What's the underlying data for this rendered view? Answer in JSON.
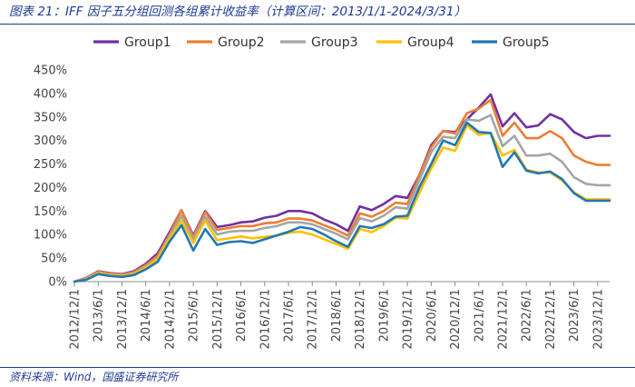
{
  "header": {
    "title": "图表 21：IFF 因子五分组回测各组累计收益率（计算区间：2013/1/1-2024/3/31）"
  },
  "footer": {
    "source": "资料来源：Wind，国盛证券研究所"
  },
  "chart_data": {
    "type": "line",
    "title": "",
    "xlabel": "",
    "ylabel": "",
    "ylim": [
      0,
      450
    ],
    "yticks": [
      "0%",
      "50%",
      "100%",
      "150%",
      "200%",
      "250%",
      "300%",
      "350%",
      "400%",
      "450%"
    ],
    "grid": false,
    "legend_position": "top",
    "xtick_labels": [
      "2012/12/1",
      "2013/6/1",
      "2013/12/1",
      "2014/6/1",
      "2014/12/1",
      "2015/6/1",
      "2015/12/1",
      "2016/6/1",
      "2016/12/1",
      "2017/6/1",
      "2017/12/1",
      "2018/6/1",
      "2018/12/1",
      "2019/6/1",
      "2019/12/1",
      "2020/6/1",
      "2020/12/1",
      "2021/6/1",
      "2021/12/1",
      "2022/6/1",
      "2022/12/1",
      "2023/6/1",
      "2023/12/1"
    ],
    "x": [
      "2012/12",
      "2013/3",
      "2013/6",
      "2013/9",
      "2013/12",
      "2014/3",
      "2014/6",
      "2014/9",
      "2014/12",
      "2015/3",
      "2015/6",
      "2015/9",
      "2015/12",
      "2016/3",
      "2016/6",
      "2016/9",
      "2016/12",
      "2017/3",
      "2017/6",
      "2017/9",
      "2017/12",
      "2018/3",
      "2018/6",
      "2018/9",
      "2018/12",
      "2019/3",
      "2019/6",
      "2019/9",
      "2019/12",
      "2020/3",
      "2020/6",
      "2020/9",
      "2020/12",
      "2021/3",
      "2021/6",
      "2021/9",
      "2021/12",
      "2022/3",
      "2022/6",
      "2022/9",
      "2022/12",
      "2023/3",
      "2023/6",
      "2023/9",
      "2023/12",
      "2024/3"
    ],
    "series": [
      {
        "name": "Group1",
        "color": "#7030a0",
        "values": [
          0,
          8,
          22,
          18,
          16,
          22,
          38,
          60,
          105,
          152,
          98,
          150,
          116,
          120,
          126,
          128,
          136,
          140,
          150,
          150,
          145,
          132,
          122,
          108,
          160,
          152,
          165,
          182,
          178,
          226,
          290,
          320,
          318,
          345,
          370,
          398,
          330,
          358,
          328,
          332,
          356,
          345,
          318,
          305,
          310,
          310
        ]
      },
      {
        "name": "Group2",
        "color": "#ed7d31",
        "values": [
          0,
          7,
          21,
          17,
          15,
          20,
          35,
          55,
          100,
          152,
          95,
          148,
          110,
          114,
          118,
          118,
          124,
          126,
          134,
          134,
          130,
          120,
          110,
          98,
          145,
          138,
          150,
          168,
          165,
          225,
          285,
          320,
          315,
          358,
          368,
          386,
          310,
          338,
          305,
          305,
          320,
          305,
          268,
          255,
          248,
          248
        ]
      },
      {
        "name": "Group3",
        "color": "#a5a5a5",
        "values": [
          0,
          6,
          19,
          15,
          13,
          18,
          32,
          50,
          96,
          140,
          90,
          138,
          100,
          106,
          108,
          108,
          114,
          118,
          126,
          126,
          122,
          112,
          102,
          90,
          135,
          128,
          140,
          158,
          155,
          215,
          275,
          308,
          305,
          345,
          342,
          354,
          288,
          310,
          268,
          268,
          272,
          255,
          222,
          208,
          205,
          205
        ]
      },
      {
        "name": "Group4",
        "color": "#ffc000",
        "values": [
          0,
          5,
          18,
          14,
          12,
          16,
          30,
          48,
          92,
          130,
          82,
          130,
          88,
          92,
          96,
          92,
          95,
          98,
          104,
          106,
          100,
          90,
          80,
          70,
          112,
          105,
          118,
          136,
          134,
          188,
          240,
          285,
          278,
          332,
          312,
          316,
          268,
          280,
          238,
          232,
          232,
          215,
          190,
          175,
          175,
          175
        ]
      },
      {
        "name": "Group5",
        "color": "#1f78b4",
        "values": [
          0,
          4,
          16,
          12,
          10,
          14,
          26,
          42,
          85,
          120,
          66,
          112,
          78,
          84,
          86,
          82,
          90,
          98,
          106,
          116,
          112,
          100,
          86,
          74,
          118,
          114,
          122,
          138,
          140,
          200,
          250,
          300,
          290,
          338,
          318,
          316,
          244,
          275,
          236,
          230,
          234,
          218,
          188,
          172,
          172,
          172
        ]
      }
    ]
  }
}
